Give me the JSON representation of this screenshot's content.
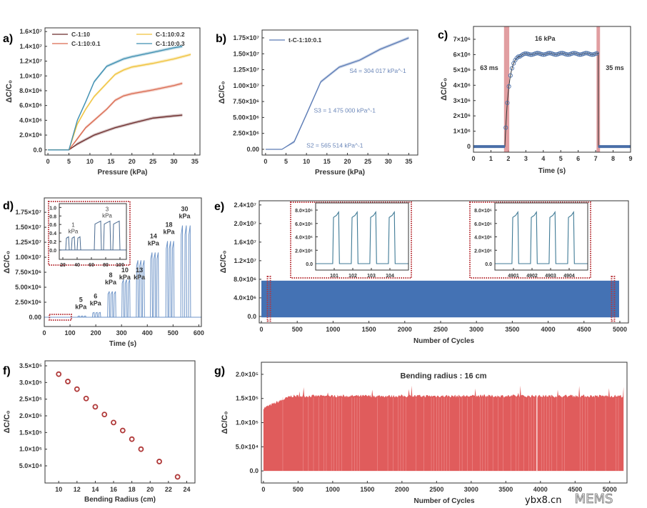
{
  "watermark": {
    "site": "ybx8.cn",
    "brand": "MEMS"
  },
  "chart_data": [
    {
      "panel": "a)",
      "type": "line",
      "xlabel": "Pressure (kPa)",
      "ylabel": "ΔC/C₀",
      "xlim": [
        -0.7,
        36.2
      ],
      "ylim": [
        -700000,
        16500000
      ],
      "xticks": [
        0,
        5,
        10,
        15,
        20,
        25,
        30,
        35
      ],
      "xticklabels": [
        "0",
        "5",
        "10",
        "15",
        "20",
        "25",
        "30",
        "35"
      ],
      "yticks": [
        0,
        2000000,
        4000000,
        6000000,
        8000000,
        10000000,
        12000000,
        14000000,
        16000000
      ],
      "yticklabels": [
        "0.0",
        "2.0×10⁶",
        "4.0×10⁶",
        "6.0×10⁶",
        "8.0×10⁶",
        "1.0×10⁷",
        "1.2×10⁷",
        "1.4×10⁷",
        "1.6×10⁷"
      ],
      "legend": "top",
      "series": [
        {
          "name": "C-1:10",
          "color": "#6b2a2a",
          "x": [
            0,
            5,
            7,
            9,
            11,
            14,
            16,
            18,
            20,
            25,
            30,
            32
          ],
          "y": [
            0,
            0,
            800000,
            1400000,
            2000000,
            2600000,
            3000000,
            3300000,
            3600000,
            4300000,
            4600000,
            4700000
          ]
        },
        {
          "name": "C-1:10:0.1",
          "color": "#d9694f",
          "x": [
            0,
            5,
            7,
            9,
            11,
            14,
            16,
            18,
            20,
            25,
            30,
            32
          ],
          "y": [
            0,
            0,
            1500000,
            3000000,
            4000000,
            5500000,
            6700000,
            7300000,
            7600000,
            8100000,
            8700000,
            9000000
          ]
        },
        {
          "name": "C-1:10:0.2",
          "color": "#f0c23a",
          "x": [
            0,
            5,
            7,
            9,
            11,
            14,
            16,
            18,
            20,
            25,
            30,
            32,
            34
          ],
          "y": [
            0,
            0,
            3500000,
            5500000,
            7200000,
            9000000,
            10200000,
            10800000,
            11200000,
            11700000,
            12300000,
            12600000,
            12900000
          ]
        },
        {
          "name": "C-1:10:0.3",
          "color": "#3d8eb0",
          "x": [
            0,
            5,
            7,
            9,
            11,
            14,
            16,
            18,
            20,
            25,
            30,
            32
          ],
          "y": [
            0,
            0,
            4000000,
            6500000,
            9200000,
            11300000,
            11800000,
            12300000,
            12600000,
            13200000,
            13800000,
            14000000
          ]
        }
      ]
    },
    {
      "panel": "b)",
      "type": "line",
      "xlabel": "Pressure (kPa)",
      "ylabel": "ΔC/C₀",
      "xlim": [
        -0.85,
        37.2
      ],
      "ylim": [
        -900000,
        18730000
      ],
      "xticks": [
        0,
        5,
        10,
        15,
        20,
        25,
        30,
        35
      ],
      "xticklabels": [
        "0",
        "5",
        "10",
        "15",
        "20",
        "25",
        "30",
        "35"
      ],
      "yticks": [
        0,
        2500000,
        5000000,
        7500000,
        10000000,
        12500000,
        15000000,
        17500000
      ],
      "yticklabels": [
        "0.00",
        "2.50×10⁶",
        "5.00×10⁶",
        "7.50×10⁶",
        "1.00×10⁷",
        "1.25×10⁷",
        "1.50×10⁷",
        "1.75×10⁷"
      ],
      "legend": "top-left",
      "series": [
        {
          "name": "t-C-1:10:0.1",
          "color": "#5b7bb5",
          "x": [
            0,
            4,
            7,
            10,
            13.5,
            18,
            23,
            28,
            35
          ],
          "y": [
            0,
            0,
            1200000,
            5500000,
            10600000,
            12900000,
            14000000,
            15700000,
            17500000
          ]
        }
      ],
      "annotations": [
        "S2 = 565 514 kPa^-1",
        "S3 = 1 475 000  kPa^-1",
        "S4 = 304 017 kPa^-1"
      ]
    },
    {
      "panel": "c)",
      "type": "line",
      "xlabel": "Time (s)",
      "ylabel": "ΔC/C₀",
      "xlim": [
        0,
        9
      ],
      "ylim": [
        -370000,
        7840000
      ],
      "xticks": [
        0,
        1,
        2,
        3,
        4,
        5,
        6,
        7,
        8,
        9
      ],
      "xticklabels": [
        "0",
        "1",
        "2",
        "3",
        "4",
        "5",
        "6",
        "7",
        "8",
        "9"
      ],
      "yticks": [
        0,
        1000000,
        2000000,
        3000000,
        4000000,
        5000000,
        6000000,
        7000000
      ],
      "yticklabels": [
        "0",
        "1×10⁶",
        "2×10⁶",
        "3×10⁶",
        "4×10⁶",
        "5×10⁶",
        "6×10⁶",
        "7×10⁶"
      ],
      "color": "#4a6fa8",
      "band_color": "#d9868a",
      "rise_start": 1.8,
      "fall_time": 7.15,
      "plateau": 6050000,
      "highlight_bands": [
        [
          1.75,
          2.05
        ],
        [
          7.05,
          7.25
        ]
      ],
      "annotations": [
        "63 ms",
        "16 kPa",
        "35 ms"
      ]
    },
    {
      "panel": "d)",
      "type": "line",
      "xlabel": "Time (s)",
      "ylabel": "ΔC/C₀",
      "xlim": [
        0,
        610
      ],
      "ylim": [
        -1550000,
        19900000
      ],
      "xticks": [
        0,
        100,
        200,
        300,
        400,
        500,
        600
      ],
      "xticklabels": [
        "0",
        "100",
        "200",
        "300",
        "400",
        "500",
        "600"
      ],
      "yticks": [
        0,
        2500000,
        5000000,
        7500000,
        10000000,
        12500000,
        15000000,
        17500000
      ],
      "yticklabels": [
        "0.00",
        "2.50×10⁶",
        "5.00×10⁶",
        "7.50×10⁶",
        "1.00×10⁷",
        "1.25×10⁷",
        "1.50×10⁷",
        "1.75×10⁷"
      ],
      "color": "#6f95c8",
      "groups": [
        {
          "value": "5",
          "unit": "kPa",
          "start": 130,
          "peak": 200000
        },
        {
          "value": "6",
          "unit": "kPa",
          "start": 187,
          "peak": 800000
        },
        {
          "value": "8",
          "unit": "kPa",
          "start": 246,
          "peak": 4300000
        },
        {
          "value": "10",
          "unit": "kPa",
          "start": 301,
          "peak": 6300000
        },
        {
          "value": "13",
          "unit": "kPa",
          "start": 357,
          "peak": 9500000
        },
        {
          "value": "14",
          "unit": "kPa",
          "start": 412,
          "peak": 10800000
        },
        {
          "value": "18",
          "unit": "kPa",
          "start": 472,
          "peak": 12700000
        },
        {
          "value": "30",
          "unit": "kPa",
          "start": 530,
          "peak": 15300000
        }
      ],
      "inset": {
        "xlim": [
          15,
          109
        ],
        "ylim": [
          -0.22,
          1.09
        ],
        "xticks": [
          20,
          40,
          60,
          80,
          100
        ],
        "xticklabels": [
          "20",
          "40",
          "60",
          "80",
          "100"
        ],
        "yticks": [
          0,
          0.2,
          0.4,
          0.6,
          0.8,
          1.0
        ],
        "yticklabels": [
          "0.0",
          "0.2",
          "0.4",
          "0.6",
          "0.8",
          "1.0"
        ],
        "groups": [
          {
            "value": "1",
            "unit": "kPa",
            "start": 24,
            "period": 8,
            "width": 5,
            "peak": 0.31
          },
          {
            "value": "3",
            "unit": "kPa",
            "start": 64,
            "period": 13,
            "width": 10,
            "peak": 0.68
          }
        ]
      }
    },
    {
      "panel": "e)",
      "type": "area",
      "xlabel": "Number of Cycles",
      "ylabel": "ΔC/C₀",
      "xlim": [
        -30,
        5120
      ],
      "ylim": [
        -1400000,
        24900000
      ],
      "xticks": [
        0,
        500,
        1000,
        1500,
        2000,
        2500,
        3000,
        3500,
        4000,
        4500,
        5000
      ],
      "xticklabels": [
        "0",
        "500",
        "1000",
        "1500",
        "2000",
        "2500",
        "3000",
        "3500",
        "4000",
        "4500",
        "5000"
      ],
      "yticks": [
        0,
        4000000,
        8000000,
        12000000,
        16000000,
        20000000,
        24000000
      ],
      "yticklabels": [
        "0.0",
        "4.0×10⁶",
        "8.0×10⁶",
        "1.2×10⁷",
        "1.6×10⁷",
        "2.0×10⁷",
        "2.4×10⁷"
      ],
      "color": "#4472b4",
      "peak": 7700000,
      "cycles": 5000,
      "insets": [
        {
          "xlim": [
            100,
            105
          ],
          "ylim": [
            -960000,
            9070000
          ],
          "xticks": [
            101,
            102,
            103,
            104
          ],
          "xticklabels": [
            "101",
            "102",
            "103",
            "104"
          ],
          "yticks": [
            0,
            2000000,
            4000000,
            6000000,
            8000000
          ],
          "yticklabels": [
            "0.0",
            "2.0×10⁶",
            "4.0×10⁶",
            "6.0×10⁶",
            "8.0×10⁶"
          ]
        },
        {
          "xlim": [
            4900,
            4905
          ],
          "ylim": [
            -960000,
            9070000
          ],
          "xticks": [
            4901,
            4902,
            4903,
            4904
          ],
          "xticklabels": [
            "4901",
            "4902",
            "4903",
            "4904"
          ],
          "yticks": [
            0,
            2000000,
            4000000,
            6000000,
            8000000
          ],
          "yticklabels": [
            "0.0",
            "2.0×10⁶",
            "4.0×10⁶",
            "6.0×10⁶",
            "8.0×10⁶"
          ]
        }
      ]
    },
    {
      "panel": "f)",
      "type": "scatter",
      "xlabel": "Bending Radius (cm)",
      "ylabel": "ΔC/C₀",
      "xlim": [
        8.5,
        24.9
      ],
      "ylim": [
        -1400,
        365000
      ],
      "xticks": [
        10,
        12,
        14,
        16,
        18,
        20,
        22,
        24
      ],
      "xticklabels": [
        "10",
        "12",
        "14",
        "16",
        "18",
        "20",
        "22",
        "24"
      ],
      "yticks": [
        50000,
        100000,
        150000,
        200000,
        250000,
        300000,
        350000
      ],
      "yticklabels": [
        "5.0×10⁴",
        "1.0×10⁵",
        "1.5×10⁵",
        "2.0×10⁵",
        "2.5×10⁵",
        "3.0×10⁵",
        "3.5×10⁵"
      ],
      "color": "#b03a3a",
      "x": [
        10,
        11,
        12,
        13,
        14,
        15,
        16,
        17,
        18,
        19,
        21,
        23
      ],
      "y": [
        325000,
        303000,
        280000,
        252000,
        227000,
        204000,
        180000,
        156000,
        130000,
        100000,
        63000,
        17000
      ]
    },
    {
      "panel": "g)",
      "type": "area",
      "xlabel": "Number of Cycles",
      "ylabel": "ΔC/C₀",
      "xlim": [
        -30,
        5250
      ],
      "ylim": [
        -25000,
        225000
      ],
      "xticks": [
        0,
        500,
        1000,
        1500,
        2000,
        2500,
        3000,
        3500,
        4000,
        4500,
        5000
      ],
      "xticklabels": [
        "0",
        "500",
        "1000",
        "1500",
        "2000",
        "2500",
        "3000",
        "3500",
        "4000",
        "4500",
        "5000"
      ],
      "yticks": [
        0,
        50000,
        100000,
        150000,
        200000
      ],
      "yticklabels": [
        "0.0",
        "5.0×10⁴",
        "1.0×10⁵",
        "1.5×10⁵",
        "2.0×10⁵"
      ],
      "color": "#e05c5c",
      "initial_peak": 130000,
      "typical_peak": 155000,
      "cycles": 5200,
      "annotation": "Bending radius : 16 cm",
      "annotation_color": "#c0392b"
    }
  ]
}
